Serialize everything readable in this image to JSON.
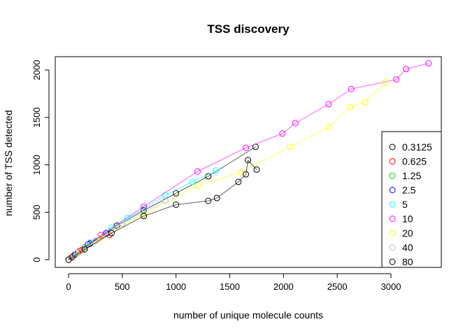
{
  "chart_data": {
    "type": "scatter",
    "title": "TSS discovery",
    "xlabel": "number of unique molecule counts",
    "ylabel": "number of TSS detected",
    "xlim": [
      0,
      3400
    ],
    "ylim": [
      0,
      2100
    ],
    "xticks": [
      0,
      500,
      1000,
      1500,
      2000,
      2500,
      3000
    ],
    "yticks": [
      0,
      500,
      1000,
      1500,
      2000
    ],
    "grid": false,
    "legend_position": "bottom-right",
    "series": [
      {
        "name": "0.3125",
        "color": "#000000",
        "x": [
          0,
          30,
          90,
          200,
          450,
          700,
          1000,
          1300,
          1740
        ],
        "y": [
          0,
          25,
          75,
          170,
          360,
          520,
          700,
          880,
          1190
        ]
      },
      {
        "name": "0.625",
        "color": "#ff0000",
        "x": [
          0,
          40,
          120,
          250,
          380
        ],
        "y": [
          0,
          35,
          100,
          200,
          260
        ]
      },
      {
        "name": "1.25",
        "color": "#00cd00",
        "x": [
          0,
          50,
          150
        ],
        "y": [
          0,
          45,
          130
        ]
      },
      {
        "name": "2.5",
        "color": "#0000ff",
        "x": [
          0,
          60,
          180,
          350
        ],
        "y": [
          0,
          55,
          160,
          280
        ]
      },
      {
        "name": "5",
        "color": "#00ffff",
        "x": [
          0,
          80,
          200,
          400,
          550,
          700,
          900,
          1150,
          1370
        ],
        "y": [
          0,
          70,
          180,
          340,
          440,
          540,
          680,
          820,
          940
        ]
      },
      {
        "name": "10",
        "color": "#ff00ff",
        "x": [
          0,
          100,
          300,
          700,
          1200,
          1650,
          1990,
          2110,
          2420,
          2630,
          3050,
          3140,
          3350
        ],
        "y": [
          0,
          90,
          260,
          560,
          930,
          1180,
          1330,
          1440,
          1640,
          1800,
          1900,
          2010,
          2070
        ]
      },
      {
        "name": "20",
        "color": "#ffff00",
        "x": [
          0,
          100,
          300,
          700,
          1200,
          1600,
          2060,
          2420,
          2620,
          2760,
          2950
        ],
        "y": [
          0,
          80,
          230,
          480,
          780,
          920,
          1190,
          1400,
          1610,
          1660,
          1870
        ]
      },
      {
        "name": "40",
        "color": "#bebebe",
        "x": [
          0,
          80,
          250,
          500,
          900
        ],
        "y": [
          0,
          70,
          200,
          380,
          620
        ]
      },
      {
        "name": "80",
        "color": "#000000",
        "x": [
          0,
          150,
          400,
          700,
          1000,
          1300,
          1380,
          1580,
          1650,
          1670,
          1750
        ],
        "y": [
          0,
          110,
          280,
          460,
          580,
          620,
          650,
          820,
          900,
          1050,
          950
        ]
      }
    ]
  }
}
